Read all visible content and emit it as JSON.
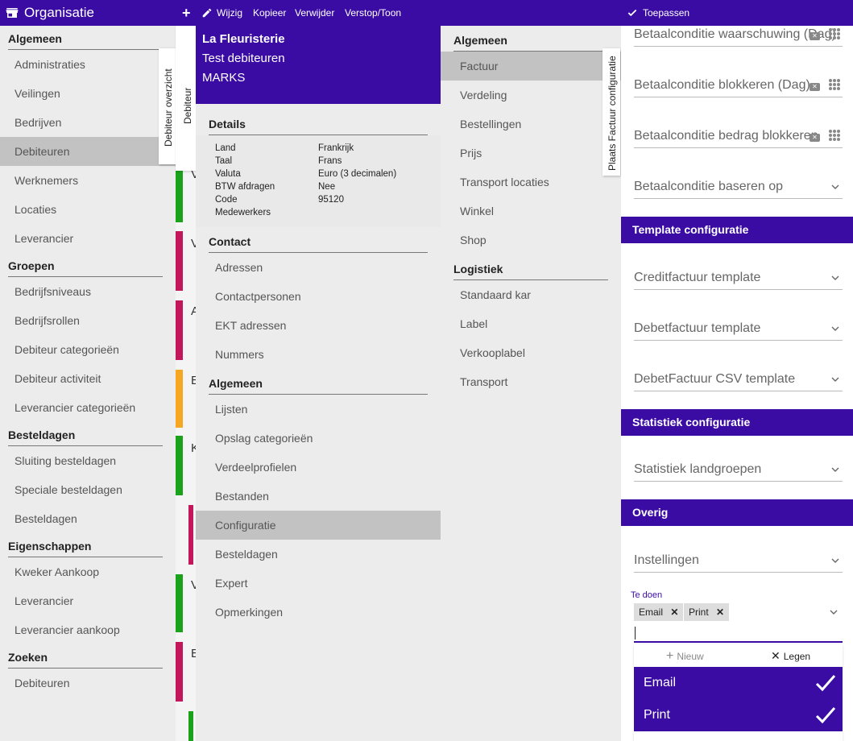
{
  "org": {
    "title": "Organisatie",
    "sections": [
      {
        "header": "Algemeen",
        "items": [
          "Administraties",
          "Veilingen",
          "Bedrijven",
          "Debiteuren",
          "Werknemers",
          "Locaties",
          "Leverancier"
        ]
      },
      {
        "header": "Groepen",
        "items": [
          "Bedrijfsniveaus",
          "Bedrijfsrollen",
          "Debiteur categorieën",
          "Debiteur activiteit",
          "Leverancier categorieën"
        ]
      },
      {
        "header": "Besteldagen",
        "items": [
          "Sluiting besteldagen",
          "Speciale besteldagen",
          "Besteldagen"
        ]
      },
      {
        "header": "Eigenschappen",
        "items": [
          "Kweker Aankoop",
          "Leverancier",
          "Leverancier aankoop"
        ]
      },
      {
        "header": "Zoeken",
        "items": [
          "Debiteuren"
        ]
      }
    ],
    "active_item": "Debiteuren",
    "tab_label": "Debiteur overzicht"
  },
  "list": {
    "tab_label": "Debiteur",
    "fragments": [
      "V",
      "V",
      "A",
      "E",
      "K",
      "V",
      "E"
    ],
    "colors": {
      "green": "#1aa31a",
      "red": "#c2185b",
      "orange": "#f5a623"
    }
  },
  "toolbar": {
    "add_label": "+",
    "edit_label": "Wijzig",
    "copy_label": "Kopieer",
    "delete_label": "Verwijder",
    "hide_label": "Verstop/Toon",
    "apply_label": "Toepassen"
  },
  "debtor": {
    "name": "La Fleuristerie",
    "subtitle": "Test debiteuren",
    "owner": "MARKS",
    "details_header": "Details",
    "details": [
      {
        "label": "Land",
        "value": "Frankrijk"
      },
      {
        "label": "Taal",
        "value": "Frans"
      },
      {
        "label": "Valuta",
        "value": "Euro (3 decimalen)"
      },
      {
        "label": "BTW afdragen",
        "value": "Nee"
      },
      {
        "label": "Code",
        "value": "95120"
      },
      {
        "label": "Medewerkers",
        "value": ""
      }
    ],
    "contact_header": "Contact",
    "contact_items": [
      "Adressen",
      "Contactpersonen",
      "EKT adressen",
      "Nummers"
    ],
    "algemeen_header": "Algemeen",
    "algemeen_items": [
      "Lijsten",
      "Opslag categorieën",
      "Verdeelprofielen",
      "Bestanden",
      "Configuratie",
      "Besteldagen",
      "Expert",
      "Opmerkingen"
    ],
    "active_item": "Configuratie"
  },
  "config": {
    "algemeen_header": "Algemeen",
    "algemeen_items": [
      "Factuur",
      "Verdeling",
      "Bestellingen",
      "Prijs",
      "Transport locaties",
      "Winkel",
      "Shop"
    ],
    "logistiek_header": "Logistiek",
    "logistiek_items": [
      "Standaard kar",
      "Label",
      "Verkooplabel",
      "Transport"
    ],
    "active_item": "Factuur",
    "tab_label": "Plaats Factuur configuratie"
  },
  "form": {
    "fields_top": [
      "Betaalconditie waarschuwing (Dag)",
      "Betaalconditie blokkeren (Dag)",
      "Betaalconditie bedrag blokkeren",
      "Betaalconditie baseren op"
    ],
    "template_header": "Template configuratie",
    "template_fields": [
      "Creditfactuur template",
      "Debetfactuur template",
      "DebetFactuur CSV template"
    ],
    "stat_header": "Statistiek configuratie",
    "stat_fields": [
      "Statistiek landgroepen"
    ],
    "overig_header": "Overig",
    "overig_fields": [
      "Instellingen"
    ],
    "todo_label": "Te doen",
    "chips": [
      "Email",
      "Print"
    ],
    "new_label": "Nieuw",
    "clear_label": "Legen",
    "options": [
      "Email",
      "Print"
    ]
  }
}
